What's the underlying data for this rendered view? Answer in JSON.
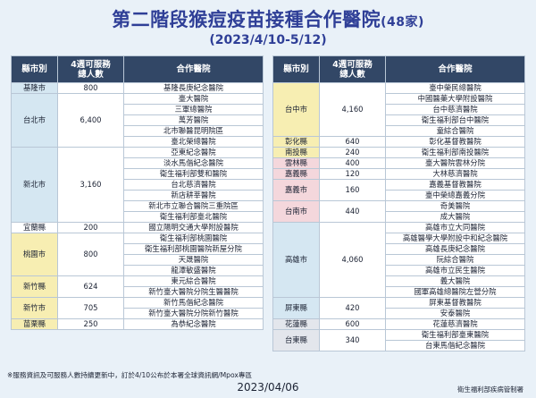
{
  "header": {
    "title": "第二階段猴痘疫苗接種合作醫院",
    "title_suffix": "(48家)",
    "subtitle": "(2023/4/10-5/12)"
  },
  "table_headers": {
    "county": "縣市別",
    "capacity": "4週可服務\n總人數",
    "hospital": "合作醫院"
  },
  "colors": {
    "header_bg": "#324766",
    "yellow": "#f7eeb2",
    "blue": "#d5e7f2",
    "pink": "#f4d7dc",
    "grey": "#e3e6ec",
    "white": "#ffffff",
    "title": "#2f3f97"
  },
  "left_groups": [
    {
      "county": "基隆市",
      "count": "800",
      "color": "blue",
      "hospitals": [
        "基隆長庚紀念醫院"
      ]
    },
    {
      "county": "台北市",
      "count": "6,400",
      "color": "blue",
      "hospitals": [
        "臺大醫院",
        "三軍總醫院",
        "萬芳醫院",
        "北市聯醫昆明院區",
        "臺北榮總醫院"
      ]
    },
    {
      "county": "新北市",
      "count": "3,160",
      "color": "blue",
      "hospitals": [
        "亞東紀念醫院",
        "淡水馬偕紀念醫院",
        "衛生福利部雙和醫院",
        "台北慈濟醫院",
        "新店耕莘醫院",
        "新北市立聯合醫院三重院區",
        "衛生福利部臺北醫院"
      ]
    },
    {
      "county": "宜蘭縣",
      "count": "200",
      "color": "white",
      "hospitals": [
        "國立陽明交通大學附設醫院"
      ]
    },
    {
      "county": "桃園市",
      "count": "800",
      "color": "yellow",
      "hospitals": [
        "衛生福利部桃園醫院",
        "衛生福利部桃園醫院新屋分院",
        "天晟醫院",
        "龍潭敏盛醫院"
      ]
    },
    {
      "county": "新竹縣",
      "count": "624",
      "color": "yellow",
      "hospitals": [
        "東元綜合醫院",
        "新竹臺大醫院分院生醫醫院"
      ]
    },
    {
      "county": "新竹市",
      "count": "705",
      "color": "yellow",
      "hospitals": [
        "新竹馬偕紀念醫院",
        "新竹臺大醫院分院新竹醫院"
      ]
    },
    {
      "county": "苗栗縣",
      "count": "250",
      "color": "yellow",
      "hospitals": [
        "為恭紀念醫院"
      ]
    }
  ],
  "right_groups": [
    {
      "county": "台中市",
      "count": "4,160",
      "color": "yellow",
      "hospitals": [
        "臺中榮民總醫院",
        "中國醫藥大學附設醫院",
        "台中慈濟醫院",
        "衛生福利部台中醫院",
        "童綜合醫院"
      ]
    },
    {
      "county": "彰化縣",
      "count": "640",
      "color": "yellow",
      "hospitals": [
        "彰化基督教醫院"
      ]
    },
    {
      "county": "南投縣",
      "count": "240",
      "color": "yellow",
      "hospitals": [
        "衛生福利部南投醫院"
      ]
    },
    {
      "county": "雲林縣",
      "count": "400",
      "color": "pink",
      "hospitals": [
        "臺大醫院雲林分院"
      ]
    },
    {
      "county": "嘉義縣",
      "count": "120",
      "color": "pink",
      "hospitals": [
        "大林慈濟醫院"
      ]
    },
    {
      "county": "嘉義市",
      "count": "160",
      "color": "pink",
      "hospitals": [
        "嘉義基督教醫院",
        "臺中榮總嘉義分院"
      ]
    },
    {
      "county": "台南市",
      "count": "440",
      "color": "pink",
      "hospitals": [
        "奇美醫院",
        "成大醫院"
      ]
    },
    {
      "county": "高雄市",
      "count": "4,060",
      "color": "blue",
      "hospitals": [
        "高雄市立大同醫院",
        "高雄醫學大學附設中和紀念醫院",
        "高雄長庚紀念醫院",
        "阮綜合醫院",
        "高雄市立民生醫院",
        "義大醫院",
        "國軍高雄總醫院左營分院"
      ]
    },
    {
      "county": "屏東縣",
      "count": "420",
      "color": "blue",
      "hospitals": [
        "屏東基督教醫院",
        "安泰醫院"
      ]
    },
    {
      "county": "花蓮縣",
      "count": "600",
      "color": "grey",
      "hospitals": [
        "花蓮慈濟醫院"
      ]
    },
    {
      "county": "台東縣",
      "count": "340",
      "color": "grey",
      "hospitals": [
        "衛生福利部臺東醫院",
        "台東馬偕紀念醫院"
      ]
    }
  ],
  "footer": {
    "note": "※服務資訊及可服務人數持續更新中，訂於4/10公布於本署全球資訊網/Mpox專區",
    "date": "2023/04/06",
    "credit": "衛生福利部疾病管制署"
  }
}
